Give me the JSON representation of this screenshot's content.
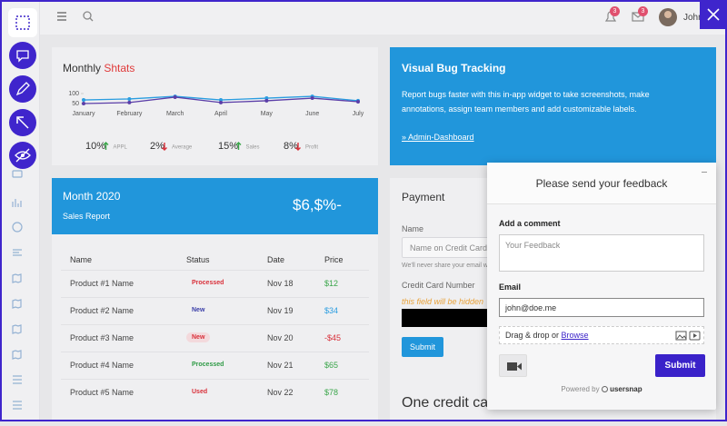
{
  "topbar": {
    "notification_count": "3",
    "message_count": "3",
    "user_name": "John"
  },
  "stats_card": {
    "title": "Monthly ",
    "title_accent": "Shtats",
    "chart": {
      "type": "line",
      "categories": [
        "January",
        "February",
        "March",
        "April",
        "May",
        "June",
        "July"
      ],
      "ylim": [
        0,
        100
      ],
      "yticks": [
        50,
        100
      ],
      "series": [
        {
          "color": "#2a9de0",
          "values": [
            68,
            73,
            86,
            68,
            77,
            86,
            64
          ]
        },
        {
          "color": "#5b3ea8",
          "values": [
            50,
            55,
            82,
            55,
            64,
            77,
            59
          ]
        }
      ]
    },
    "stats": [
      {
        "value": "10%",
        "trend": "up",
        "label": "APPL"
      },
      {
        "value": "2%",
        "trend": "down",
        "label": "Average"
      },
      {
        "value": "15%",
        "trend": "up",
        "label": "Sales"
      },
      {
        "value": "8%",
        "trend": "down",
        "label": "Profit"
      }
    ]
  },
  "promo_card": {
    "title": "Visual Bug Tracking",
    "text": "Report bugs faster with this in-app widget to take screenshots, make annotations, assign team members and add customizable labels.",
    "link": "» Admin-Dashboard"
  },
  "sales_card": {
    "title": "Month 2020",
    "subtitle": "Sales Report",
    "amount": "$6,$%-"
  },
  "table": {
    "columns": [
      "Name",
      "Status",
      "Date",
      "Price"
    ],
    "rows": [
      {
        "name": "Product #1 Name",
        "status": "Processed",
        "status_color": "#d9303a",
        "date": "Nov 18",
        "price": "$12",
        "price_color": "#3aa64a"
      },
      {
        "name": "Product #2 Name",
        "status": "New",
        "status_color": "#3b3fa8",
        "date": "Nov 19",
        "price": "$34",
        "price_color": "#2a9de0"
      },
      {
        "name": "Product #3 Name",
        "status": "New",
        "status_color": "#d9303a",
        "status_background": "#f3d9dc",
        "date": "Nov 20",
        "price": "-$45",
        "price_color": "#d9303a"
      },
      {
        "name": "Product #4 Name",
        "status": "Processed",
        "status_color": "#2e9a45",
        "date": "Nov 21",
        "price": "$65",
        "price_color": "#3aa64a"
      },
      {
        "name": "Product #5 Name",
        "status": "Used",
        "status_color": "#d9303a",
        "date": "Nov 22",
        "price": "$78",
        "price_color": "#3aa64a"
      }
    ]
  },
  "payment": {
    "title": "Payment",
    "name_label": "Name",
    "name_placeholder": "Name on Credit Card",
    "name_help": "We'll never share your email with anyone else.",
    "card_label": "Credit Card Number",
    "card_note": "this field will be hidden",
    "submit": "Submit",
    "next_title": "One credit card"
  },
  "feedback": {
    "title": "Please send your feedback",
    "comment_label": "Add a comment",
    "comment_placeholder": "Your Feedback",
    "email_label": "Email",
    "email_value": "john@doe.me",
    "upload_text": "Drag & drop or ",
    "upload_link": "Browse",
    "submit": "Submit",
    "powered_by": "Powered by",
    "brand": "usersnap"
  }
}
